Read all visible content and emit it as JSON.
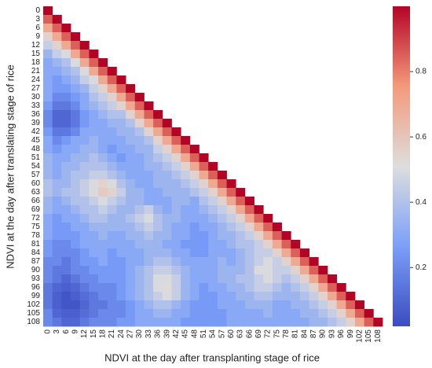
{
  "chart_data": {
    "type": "heatmap",
    "triangle": "lower",
    "colormap": "coolwarm",
    "x_label": "NDVI at the day after transplanting stage of rice",
    "y_label": "NDVI at the day after translating stage of rice",
    "categories": [
      "0",
      "3",
      "6",
      "9",
      "12",
      "15",
      "18",
      "21",
      "24",
      "27",
      "30",
      "33",
      "36",
      "39",
      "42",
      "45",
      "48",
      "51",
      "54",
      "57",
      "60",
      "63",
      "66",
      "69",
      "72",
      "75",
      "78",
      "81",
      "84",
      "87",
      "90",
      "93",
      "96",
      "99",
      "102",
      "105",
      "108"
    ],
    "zlim": [
      0.02,
      1.0
    ],
    "zticks": [
      0.2,
      0.4,
      0.6,
      0.8
    ],
    "values": [
      [
        1
      ],
      [
        0.85,
        1
      ],
      [
        0.7,
        0.85,
        1
      ],
      [
        0.55,
        0.7,
        0.85,
        1
      ],
      [
        0.45,
        0.55,
        0.7,
        0.85,
        1
      ],
      [
        0.35,
        0.45,
        0.5,
        0.7,
        0.85,
        1
      ],
      [
        0.3,
        0.35,
        0.4,
        0.5,
        0.7,
        0.85,
        1
      ],
      [
        0.3,
        0.3,
        0.35,
        0.4,
        0.5,
        0.7,
        0.85,
        1
      ],
      [
        0.3,
        0.25,
        0.3,
        0.35,
        0.45,
        0.5,
        0.7,
        0.85,
        1
      ],
      [
        0.3,
        0.25,
        0.25,
        0.3,
        0.35,
        0.45,
        0.55,
        0.7,
        0.85,
        1
      ],
      [
        0.3,
        0.2,
        0.2,
        0.25,
        0.3,
        0.4,
        0.45,
        0.55,
        0.7,
        0.85,
        1
      ],
      [
        0.25,
        0.15,
        0.15,
        0.2,
        0.3,
        0.35,
        0.4,
        0.45,
        0.55,
        0.7,
        0.85,
        1
      ],
      [
        0.2,
        0.1,
        0.1,
        0.15,
        0.25,
        0.3,
        0.35,
        0.4,
        0.4,
        0.55,
        0.7,
        0.85,
        1
      ],
      [
        0.2,
        0.1,
        0.1,
        0.15,
        0.25,
        0.3,
        0.3,
        0.35,
        0.35,
        0.4,
        0.55,
        0.7,
        0.85,
        1
      ],
      [
        0.25,
        0.15,
        0.15,
        0.2,
        0.3,
        0.3,
        0.3,
        0.3,
        0.35,
        0.35,
        0.4,
        0.55,
        0.7,
        0.85,
        1
      ],
      [
        0.3,
        0.2,
        0.25,
        0.3,
        0.3,
        0.35,
        0.3,
        0.3,
        0.3,
        0.35,
        0.35,
        0.4,
        0.55,
        0.7,
        0.85,
        1
      ],
      [
        0.3,
        0.25,
        0.3,
        0.3,
        0.35,
        0.35,
        0.3,
        0.25,
        0.3,
        0.3,
        0.35,
        0.35,
        0.45,
        0.55,
        0.7,
        0.85,
        1
      ],
      [
        0.35,
        0.3,
        0.3,
        0.35,
        0.35,
        0.4,
        0.35,
        0.3,
        0.25,
        0.3,
        0.3,
        0.35,
        0.4,
        0.45,
        0.55,
        0.7,
        0.85,
        1
      ],
      [
        0.35,
        0.3,
        0.35,
        0.35,
        0.4,
        0.4,
        0.4,
        0.35,
        0.3,
        0.3,
        0.3,
        0.35,
        0.35,
        0.4,
        0.45,
        0.55,
        0.7,
        0.85,
        1
      ],
      [
        0.35,
        0.3,
        0.35,
        0.4,
        0.4,
        0.45,
        0.45,
        0.4,
        0.35,
        0.3,
        0.3,
        0.3,
        0.35,
        0.35,
        0.4,
        0.45,
        0.55,
        0.7,
        0.85,
        1
      ],
      [
        0.4,
        0.35,
        0.35,
        0.4,
        0.45,
        0.5,
        0.55,
        0.5,
        0.4,
        0.35,
        0.3,
        0.3,
        0.35,
        0.35,
        0.35,
        0.4,
        0.45,
        0.55,
        0.7,
        0.85,
        1
      ],
      [
        0.4,
        0.35,
        0.4,
        0.4,
        0.45,
        0.5,
        0.58,
        0.55,
        0.45,
        0.35,
        0.35,
        0.3,
        0.3,
        0.35,
        0.35,
        0.35,
        0.4,
        0.45,
        0.55,
        0.7,
        0.85,
        1
      ],
      [
        0.35,
        0.3,
        0.35,
        0.4,
        0.4,
        0.45,
        0.5,
        0.45,
        0.4,
        0.35,
        0.35,
        0.3,
        0.3,
        0.3,
        0.35,
        0.35,
        0.3,
        0.4,
        0.45,
        0.55,
        0.7,
        0.85,
        1
      ],
      [
        0.35,
        0.3,
        0.3,
        0.35,
        0.4,
        0.4,
        0.45,
        0.4,
        0.35,
        0.35,
        0.4,
        0.45,
        0.35,
        0.3,
        0.35,
        0.3,
        0.3,
        0.35,
        0.4,
        0.45,
        0.55,
        0.7,
        0.85,
        1
      ],
      [
        0.3,
        0.25,
        0.3,
        0.3,
        0.35,
        0.4,
        0.4,
        0.35,
        0.35,
        0.4,
        0.45,
        0.5,
        0.4,
        0.35,
        0.35,
        0.3,
        0.3,
        0.3,
        0.35,
        0.4,
        0.45,
        0.55,
        0.7,
        0.85,
        1
      ],
      [
        0.3,
        0.25,
        0.25,
        0.3,
        0.3,
        0.35,
        0.35,
        0.35,
        0.35,
        0.35,
        0.4,
        0.45,
        0.4,
        0.35,
        0.3,
        0.3,
        0.25,
        0.3,
        0.3,
        0.35,
        0.4,
        0.45,
        0.55,
        0.7,
        0.85,
        1
      ],
      [
        0.3,
        0.25,
        0.25,
        0.25,
        0.3,
        0.3,
        0.35,
        0.3,
        0.3,
        0.35,
        0.35,
        0.4,
        0.35,
        0.35,
        0.3,
        0.3,
        0.25,
        0.25,
        0.3,
        0.35,
        0.35,
        0.4,
        0.45,
        0.55,
        0.7,
        0.85,
        1
      ],
      [
        0.25,
        0.2,
        0.2,
        0.25,
        0.3,
        0.3,
        0.3,
        0.3,
        0.3,
        0.3,
        0.35,
        0.35,
        0.35,
        0.3,
        0.3,
        0.25,
        0.25,
        0.25,
        0.3,
        0.3,
        0.35,
        0.4,
        0.4,
        0.45,
        0.55,
        0.7,
        0.85,
        1
      ],
      [
        0.25,
        0.2,
        0.2,
        0.2,
        0.25,
        0.3,
        0.3,
        0.25,
        0.3,
        0.3,
        0.3,
        0.35,
        0.35,
        0.35,
        0.3,
        0.3,
        0.25,
        0.25,
        0.3,
        0.3,
        0.3,
        0.35,
        0.4,
        0.45,
        0.45,
        0.55,
        0.7,
        0.85,
        1
      ],
      [
        0.2,
        0.2,
        0.15,
        0.2,
        0.25,
        0.25,
        0.3,
        0.25,
        0.25,
        0.3,
        0.3,
        0.35,
        0.4,
        0.4,
        0.35,
        0.3,
        0.3,
        0.3,
        0.3,
        0.35,
        0.3,
        0.35,
        0.4,
        0.45,
        0.5,
        0.45,
        0.55,
        0.7,
        0.85,
        1
      ],
      [
        0.2,
        0.15,
        0.15,
        0.2,
        0.2,
        0.25,
        0.25,
        0.25,
        0.25,
        0.3,
        0.35,
        0.4,
        0.45,
        0.45,
        0.4,
        0.35,
        0.3,
        0.3,
        0.3,
        0.35,
        0.35,
        0.35,
        0.4,
        0.5,
        0.5,
        0.45,
        0.45,
        0.55,
        0.7,
        0.85,
        1
      ],
      [
        0.2,
        0.15,
        0.1,
        0.15,
        0.2,
        0.2,
        0.25,
        0.25,
        0.25,
        0.3,
        0.35,
        0.4,
        0.5,
        0.5,
        0.45,
        0.35,
        0.3,
        0.3,
        0.3,
        0.35,
        0.35,
        0.4,
        0.4,
        0.45,
        0.5,
        0.45,
        0.4,
        0.45,
        0.55,
        0.7,
        0.85,
        1
      ],
      [
        0.15,
        0.1,
        0.08,
        0.1,
        0.15,
        0.2,
        0.2,
        0.2,
        0.25,
        0.3,
        0.35,
        0.4,
        0.5,
        0.52,
        0.45,
        0.35,
        0.3,
        0.25,
        0.3,
        0.3,
        0.35,
        0.35,
        0.4,
        0.45,
        0.45,
        0.4,
        0.35,
        0.4,
        0.45,
        0.55,
        0.7,
        0.85,
        1
      ],
      [
        0.15,
        0.08,
        0.05,
        0.08,
        0.12,
        0.15,
        0.2,
        0.2,
        0.25,
        0.3,
        0.35,
        0.4,
        0.45,
        0.5,
        0.45,
        0.35,
        0.3,
        0.25,
        0.25,
        0.3,
        0.3,
        0.35,
        0.35,
        0.4,
        0.4,
        0.35,
        0.35,
        0.35,
        0.4,
        0.45,
        0.55,
        0.7,
        0.85,
        1
      ],
      [
        0.15,
        0.08,
        0.05,
        0.05,
        0.1,
        0.15,
        0.15,
        0.2,
        0.2,
        0.25,
        0.3,
        0.35,
        0.4,
        0.4,
        0.35,
        0.3,
        0.25,
        0.25,
        0.25,
        0.3,
        0.3,
        0.3,
        0.35,
        0.35,
        0.35,
        0.3,
        0.3,
        0.35,
        0.35,
        0.4,
        0.45,
        0.55,
        0.7,
        0.85,
        1
      ],
      [
        0.2,
        0.1,
        0.08,
        0.08,
        0.12,
        0.15,
        0.2,
        0.2,
        0.2,
        0.25,
        0.3,
        0.3,
        0.35,
        0.35,
        0.3,
        0.3,
        0.25,
        0.25,
        0.25,
        0.25,
        0.3,
        0.3,
        0.3,
        0.3,
        0.35,
        0.3,
        0.3,
        0.3,
        0.35,
        0.35,
        0.4,
        0.45,
        0.55,
        0.7,
        0.85,
        1
      ],
      [
        0.2,
        0.15,
        0.1,
        0.1,
        0.15,
        0.2,
        0.2,
        0.2,
        0.25,
        0.25,
        0.3,
        0.3,
        0.3,
        0.3,
        0.3,
        0.25,
        0.25,
        0.25,
        0.25,
        0.25,
        0.3,
        0.3,
        0.3,
        0.3,
        0.3,
        0.3,
        0.3,
        0.3,
        0.3,
        0.35,
        0.35,
        0.4,
        0.45,
        0.55,
        0.7,
        0.85,
        1
      ]
    ]
  }
}
